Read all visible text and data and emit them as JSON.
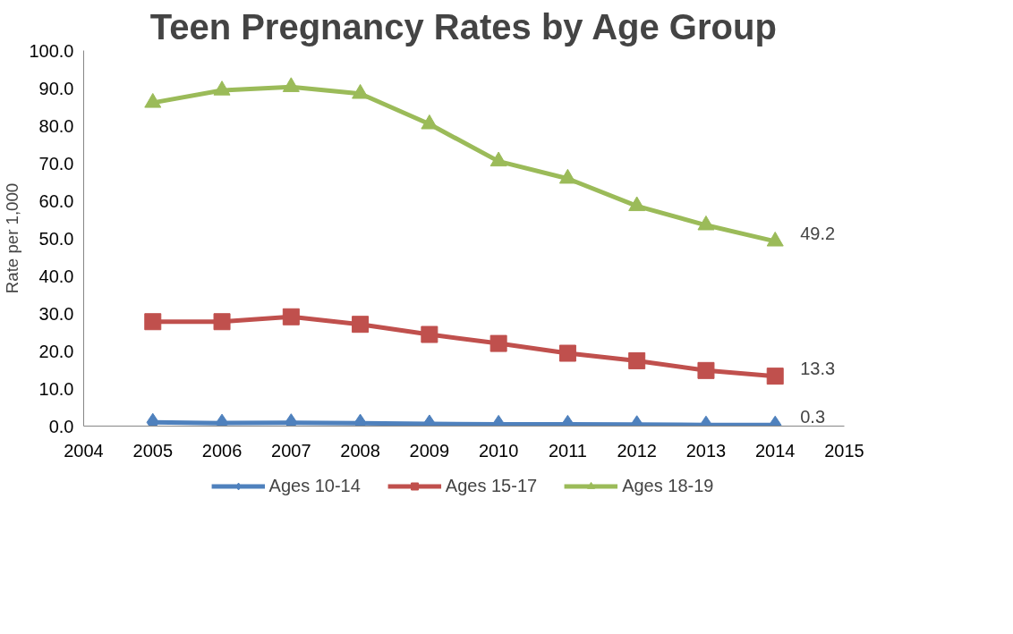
{
  "chart_data": {
    "type": "line",
    "title": "Teen Pregnancy Rates by Age Group",
    "ylabel": "Rate per 1,000",
    "x": [
      2005,
      2006,
      2007,
      2008,
      2009,
      2010,
      2011,
      2012,
      2013,
      2014
    ],
    "xlim": [
      2004,
      2015
    ],
    "xticks": [
      2004,
      2005,
      2006,
      2007,
      2008,
      2009,
      2010,
      2011,
      2012,
      2013,
      2014,
      2015
    ],
    "ylim": [
      0,
      100
    ],
    "yticks": [
      {
        "value": 0,
        "label": "0.0"
      },
      {
        "value": 10,
        "label": "10.0"
      },
      {
        "value": 20,
        "label": "20.0"
      },
      {
        "value": 30,
        "label": "30.0"
      },
      {
        "value": 40,
        "label": "40.0"
      },
      {
        "value": 50,
        "label": "50.0"
      },
      {
        "value": 60,
        "label": "60.0"
      },
      {
        "value": 70,
        "label": "70.0"
      },
      {
        "value": 80,
        "label": "80.0"
      },
      {
        "value": 90,
        "label": "90.0"
      },
      {
        "value": 100,
        "label": "100.0"
      }
    ],
    "grid": false,
    "legend": "bottom",
    "series": [
      {
        "name": "Ages 10-14",
        "color": "#4f81bd",
        "marker": "diamond",
        "values": [
          1.0,
          0.8,
          0.9,
          0.8,
          0.6,
          0.5,
          0.5,
          0.4,
          0.3,
          0.3
        ],
        "value_labels": [
          null,
          null,
          null,
          null,
          null,
          null,
          null,
          null,
          null,
          "0.3"
        ]
      },
      {
        "name": "Ages 15-17",
        "color": "#c0504d",
        "marker": "square",
        "values": [
          27.8,
          27.8,
          29.1,
          27.1,
          24.4,
          22.0,
          19.4,
          17.4,
          14.8,
          13.3
        ],
        "value_labels": [
          null,
          null,
          null,
          null,
          null,
          null,
          null,
          null,
          null,
          "13.3"
        ]
      },
      {
        "name": "Ages 18-19",
        "color": "#9bbb59",
        "marker": "triangle",
        "values": [
          86.1,
          89.4,
          90.3,
          88.5,
          80.4,
          70.5,
          65.9,
          58.6,
          53.5,
          49.2
        ],
        "value_labels": [
          null,
          null,
          null,
          null,
          null,
          null,
          null,
          null,
          null,
          "49.2"
        ]
      }
    ]
  }
}
